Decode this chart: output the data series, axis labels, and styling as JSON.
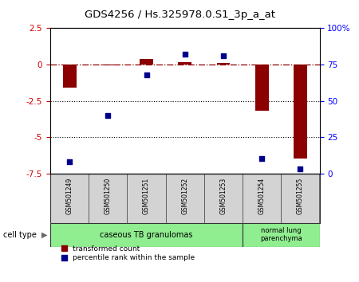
{
  "title": "GDS4256 / Hs.325978.0.S1_3p_a_at",
  "samples": [
    "GSM501249",
    "GSM501250",
    "GSM501251",
    "GSM501252",
    "GSM501253",
    "GSM501254",
    "GSM501255"
  ],
  "red_values": [
    -1.6,
    -0.05,
    0.4,
    0.15,
    0.1,
    -3.2,
    -6.5
  ],
  "blue_values_pct": [
    8,
    40,
    68,
    82,
    81,
    10,
    3
  ],
  "ylim_left": [
    -7.5,
    2.5
  ],
  "ylim_right": [
    0,
    100
  ],
  "yticks_left": [
    2.5,
    0,
    -2.5,
    -5,
    -7.5
  ],
  "yticks_right": [
    0,
    25,
    50,
    75,
    100
  ],
  "ytick_labels_right": [
    "0",
    "25",
    "50",
    "75",
    "100%"
  ],
  "dotted_lines": [
    -2.5,
    -5
  ],
  "bar_color": "#8b0000",
  "dot_color": "#00008b",
  "n_group1": 5,
  "n_group2": 2,
  "group1_label": "caseous TB granulomas",
  "group2_label": "normal lung\nparenchyma",
  "group_color": "#90EE90",
  "sample_box_color": "#d3d3d3",
  "cell_type_label": "cell type",
  "legend_red": "transformed count",
  "legend_blue": "percentile rank within the sample",
  "background_color": "#ffffff"
}
